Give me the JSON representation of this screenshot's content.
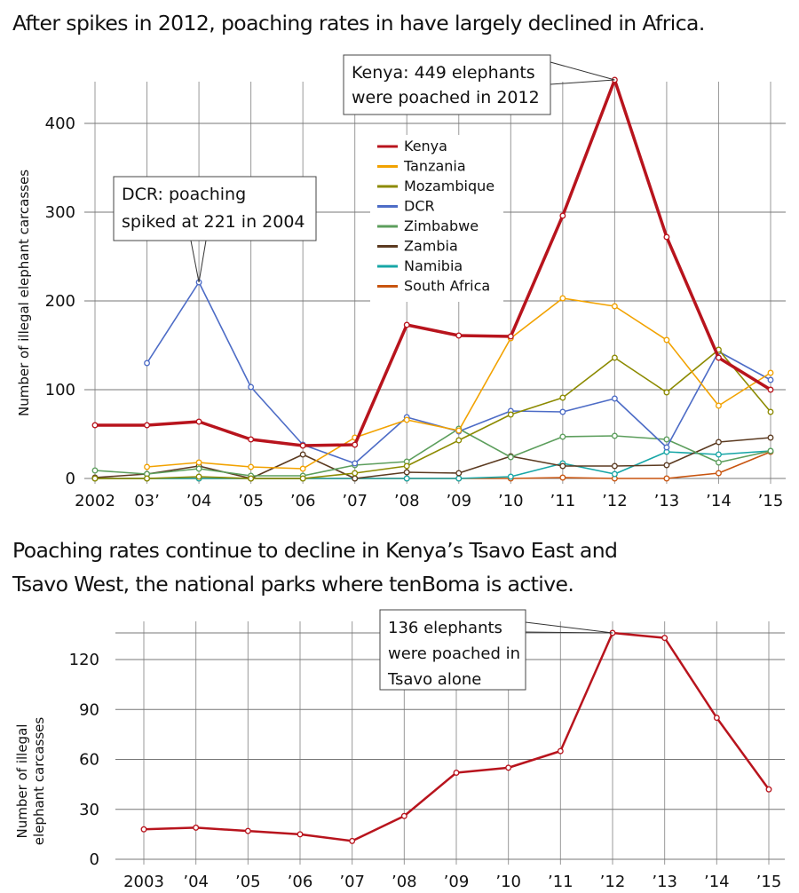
{
  "chart_data": [
    {
      "type": "line",
      "title": "After spikes in 2012, poaching rates in have largely declined in Africa.",
      "xlabel": "",
      "ylabel": "Number of illegal elephant carcasses",
      "x_tick_labels": [
        "2002",
        "03’",
        "’04",
        "’05",
        "’06",
        "’07",
        "’08",
        "’09",
        "’10",
        "’11",
        "’12",
        "’13",
        "’14",
        "’15"
      ],
      "y_ticks": [
        0,
        100,
        200,
        300,
        400
      ],
      "ylim": [
        0,
        450
      ],
      "grid": true,
      "legend_placement": "top-center",
      "series": [
        {
          "name": "Kenya",
          "color": "#b8141d",
          "width": 3.5,
          "values": [
            60,
            60,
            64,
            44,
            37,
            38,
            173,
            161,
            160,
            296,
            449,
            272,
            136,
            100
          ]
        },
        {
          "name": "Tanzania",
          "color": "#f2a200",
          "width": 1.6,
          "values": [
            null,
            13,
            18,
            13,
            11,
            46,
            66,
            54,
            158,
            203,
            194,
            156,
            82,
            119
          ]
        },
        {
          "name": "Mozambique",
          "color": "#8c8a00",
          "width": 1.6,
          "values": [
            0,
            0,
            2,
            0,
            0,
            6,
            14,
            43,
            72,
            91,
            136,
            97,
            145,
            75
          ]
        },
        {
          "name": "DCR",
          "color": "#4d6cc6",
          "width": 1.6,
          "values": [
            null,
            130,
            221,
            103,
            38,
            17,
            69,
            53,
            76,
            75,
            90,
            35,
            143,
            111
          ]
        },
        {
          "name": "Zimbabwe",
          "color": "#5c9e5c",
          "width": 1.6,
          "values": [
            9,
            5,
            11,
            3,
            3,
            15,
            19,
            56,
            24,
            47,
            48,
            44,
            18,
            31
          ]
        },
        {
          "name": "Zambia",
          "color": "#5b3a20",
          "width": 1.6,
          "values": [
            1,
            5,
            14,
            0,
            27,
            0,
            7,
            6,
            25,
            14,
            14,
            15,
            41,
            46
          ]
        },
        {
          "name": "Namibia",
          "color": "#17a6a6",
          "width": 1.6,
          "values": [
            0,
            0,
            0,
            0,
            0,
            0,
            0,
            0,
            2,
            17,
            5,
            30,
            27,
            31
          ]
        },
        {
          "name": "South Africa",
          "color": "#c8540f",
          "width": 1.6,
          "values": [
            0,
            0,
            0,
            0,
            0,
            0,
            0,
            0,
            0,
            1,
            0,
            0,
            6,
            30
          ]
        }
      ],
      "annotations": [
        {
          "series": "Kenya",
          "x_index": 10,
          "lines": [
            "Kenya: 449 elephants",
            "were poached in 2012"
          ]
        },
        {
          "series": "DCR",
          "x_index": 2,
          "lines": [
            "DCR: poaching",
            "spiked at 221 in 2004"
          ]
        }
      ]
    },
    {
      "type": "line",
      "title_lines": [
        "Poaching rates continue to decline in Kenya’s Tsavo East and",
        "Tsavo West, the national parks where tenBoma is active."
      ],
      "xlabel": "",
      "ylabel_lines": [
        "Number of illegal",
        "elephant carcasses"
      ],
      "x_tick_labels": [
        "2003",
        "’04",
        "’05",
        "’06",
        "’07",
        "’08",
        "’09",
        "’10",
        "’11",
        "’12",
        "’13",
        "’14",
        "’15"
      ],
      "y_ticks": [
        0,
        30,
        60,
        90,
        120
      ],
      "ylim": [
        0,
        136
      ],
      "grid": true,
      "series": [
        {
          "name": "Tsavo",
          "color": "#b8141d",
          "width": 2.5,
          "values": [
            18,
            19,
            17,
            15,
            11,
            26,
            52,
            55,
            65,
            136,
            133,
            85,
            42
          ]
        }
      ],
      "annotations": [
        {
          "series": "Tsavo",
          "x_index": 9,
          "lines": [
            "136 elephants",
            "were poached in",
            "Tsavo alone"
          ]
        }
      ]
    }
  ]
}
